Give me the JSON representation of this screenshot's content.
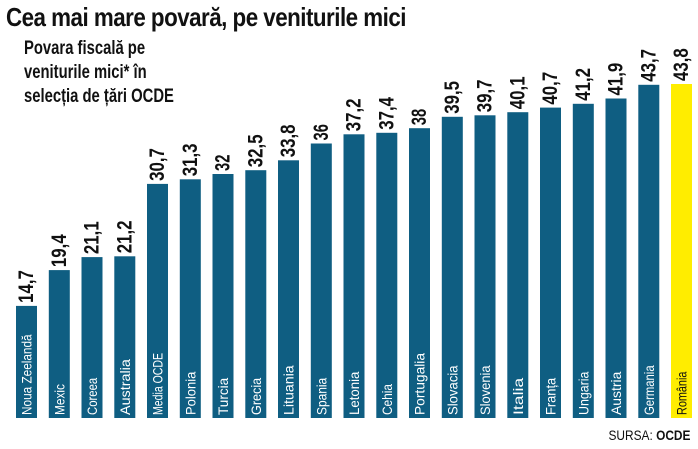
{
  "chart_data": {
    "type": "bar",
    "title": "Cea mai mare povară, pe veniturile mici",
    "subtitle": "Povara fiscală pe\nveniturile mici* în\nselecția de țări OCDE",
    "categories": [
      "Noua Zeelandă",
      "Mexic",
      "Coreea",
      "Australia",
      "Media OCDE",
      "Polonia",
      "Turcia",
      "Grecia",
      "Lituania",
      "Spania",
      "Letonia",
      "Cehia",
      "Portugalia",
      "Slovacia",
      "Slovenia",
      "Italia",
      "Franța",
      "Ungaria",
      "Austria",
      "Germania",
      "România"
    ],
    "values": [
      14.7,
      19.4,
      21.1,
      21.2,
      30.7,
      31.3,
      32,
      32.5,
      33.8,
      36,
      37.2,
      37.4,
      38,
      39.5,
      39.7,
      40.1,
      40.7,
      41.2,
      41.9,
      43.7,
      43.8
    ],
    "value_labels": [
      "14,7",
      "19,4",
      "21,1",
      "21,2",
      "30,7",
      "31,3",
      "32",
      "32,5",
      "33,8",
      "36",
      "37,2",
      "37,4",
      "38",
      "39,5",
      "39,7",
      "40,1",
      "40,7",
      "41,2",
      "41,9",
      "43,7",
      "43,8"
    ],
    "highlight": "România",
    "colors": {
      "bar": "#0f5e82",
      "highlight": "#ffed00"
    },
    "ylim": [
      0,
      43.8
    ],
    "grid": false,
    "legend": "none"
  },
  "source": {
    "prefix": "SURSA:",
    "name": "OCDE"
  }
}
